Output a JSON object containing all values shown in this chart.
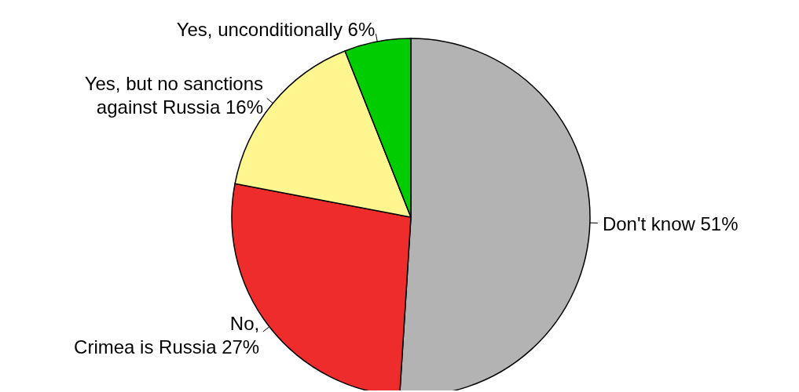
{
  "chart_data": {
    "type": "pie",
    "categories": [
      "Don't know",
      "No,\nCrimea is Russia",
      "Yes, but no sanctions\nagainst Russia",
      "Yes, unconditionally"
    ],
    "values": [
      51,
      27,
      16,
      6
    ],
    "value_labels": [
      "51%",
      "27%",
      "16%",
      "6%"
    ],
    "colors": [
      "#b3b3b3",
      "#ee2c2c",
      "#fff68f",
      "#00cd00"
    ],
    "legend": false
  }
}
